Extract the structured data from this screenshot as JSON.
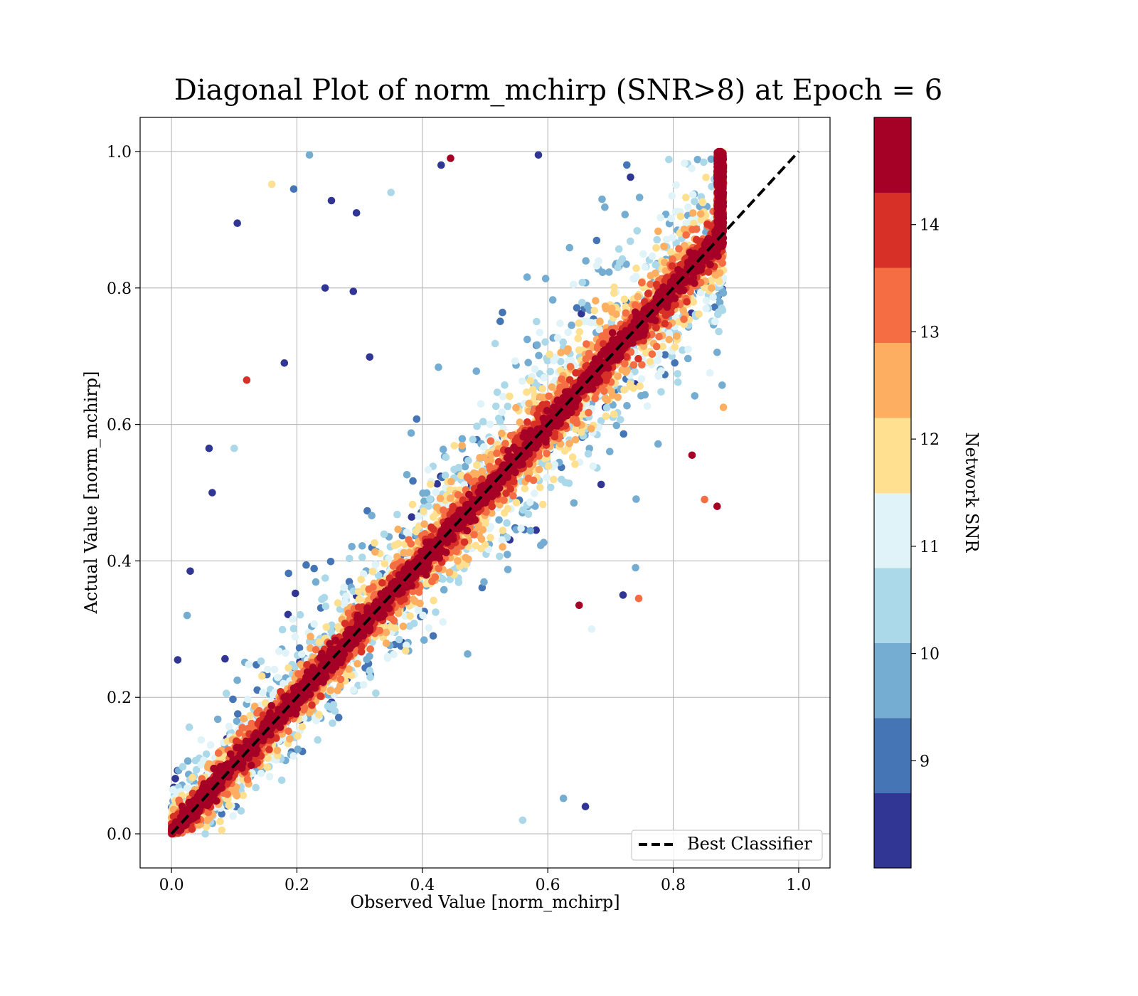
{
  "chart_data": {
    "type": "scatter",
    "title": "Diagonal Plot of norm_mchirp (SNR>8) at Epoch = 6",
    "xlabel": "Observed Value [norm_mchirp]",
    "ylabel": "Actual Value [norm_mchirp]",
    "xlim": [
      -0.05,
      1.05
    ],
    "ylim": [
      -0.05,
      1.05
    ],
    "x_ticks": [
      "0.0",
      "0.2",
      "0.4",
      "0.6",
      "0.8",
      "1.0"
    ],
    "y_ticks": [
      "0.0",
      "0.2",
      "0.4",
      "0.6",
      "0.8",
      "1.0"
    ],
    "grid": true,
    "legend": {
      "location": "lower right",
      "entries": [
        "Best Classifier"
      ]
    },
    "reference_line": {
      "name": "Best Classifier",
      "x": [
        0,
        1
      ],
      "y": [
        0,
        1
      ],
      "style": "dashed",
      "color": "#000000"
    },
    "colorbar": {
      "label": "Network SNR",
      "range": [
        8,
        15
      ],
      "levels": [
        8,
        8.7,
        9.4,
        10.1,
        10.8,
        11.5,
        12.2,
        12.9,
        13.6,
        14.3,
        15
      ],
      "tick_labels": [
        "9",
        "10",
        "11",
        "12",
        "13",
        "14"
      ],
      "tick_values": [
        9,
        10,
        11,
        12,
        13,
        14
      ],
      "colors": [
        "#313695",
        "#4575b4",
        "#74add1",
        "#abd9e9",
        "#e0f3f8",
        "#fee090",
        "#fdae61",
        "#f46d43",
        "#d73027",
        "#a50026"
      ]
    },
    "point_cloud": {
      "description_note": "dense cloud of points along the diagonal; high-SNR points concentrated near y = x, low-SNR points scattered further away; points clipped to x in [0, 0.88], y in [0, 1]",
      "n_points_approx": 9000,
      "x_range": [
        0,
        0.88
      ],
      "y_range": [
        0,
        1.0
      ]
    },
    "series": [
      {
        "name": "sample outliers",
        "points": [
          [
            0.105,
            0.895,
            8.2
          ],
          [
            0.12,
            0.665,
            14.2
          ],
          [
            0.16,
            0.952,
            11.8
          ],
          [
            0.195,
            0.945,
            9.2
          ],
          [
            0.22,
            0.995,
            9.8
          ],
          [
            0.255,
            0.928,
            8.3
          ],
          [
            0.295,
            0.91,
            8.6
          ],
          [
            0.245,
            0.8,
            8.4
          ],
          [
            0.29,
            0.795,
            8.5
          ],
          [
            0.065,
            0.5,
            8.2
          ],
          [
            0.03,
            0.385,
            8.1
          ],
          [
            0.025,
            0.32,
            9.5
          ],
          [
            0.01,
            0.255,
            8.4
          ],
          [
            0.06,
            0.565,
            8.2
          ],
          [
            0.1,
            0.565,
            10.6
          ],
          [
            0.18,
            0.69,
            8.3
          ],
          [
            0.625,
            0.052,
            9.4
          ],
          [
            0.66,
            0.04,
            8.3
          ],
          [
            0.56,
            0.02,
            10.6
          ],
          [
            0.74,
            0.39,
            9.6
          ],
          [
            0.72,
            0.35,
            8.3
          ],
          [
            0.745,
            0.345,
            13.5
          ],
          [
            0.65,
            0.335,
            14.8
          ],
          [
            0.67,
            0.3,
            10.8
          ],
          [
            0.87,
            0.48,
            14.8
          ],
          [
            0.85,
            0.49,
            13.3
          ],
          [
            0.88,
            0.625,
            12.4
          ],
          [
            0.83,
            0.555,
            14.8
          ],
          [
            0.585,
            0.995,
            8.4
          ],
          [
            0.445,
            0.99,
            14.8
          ],
          [
            0.35,
            0.94,
            10.4
          ],
          [
            0.43,
            0.98,
            8.1
          ]
        ]
      }
    ]
  }
}
